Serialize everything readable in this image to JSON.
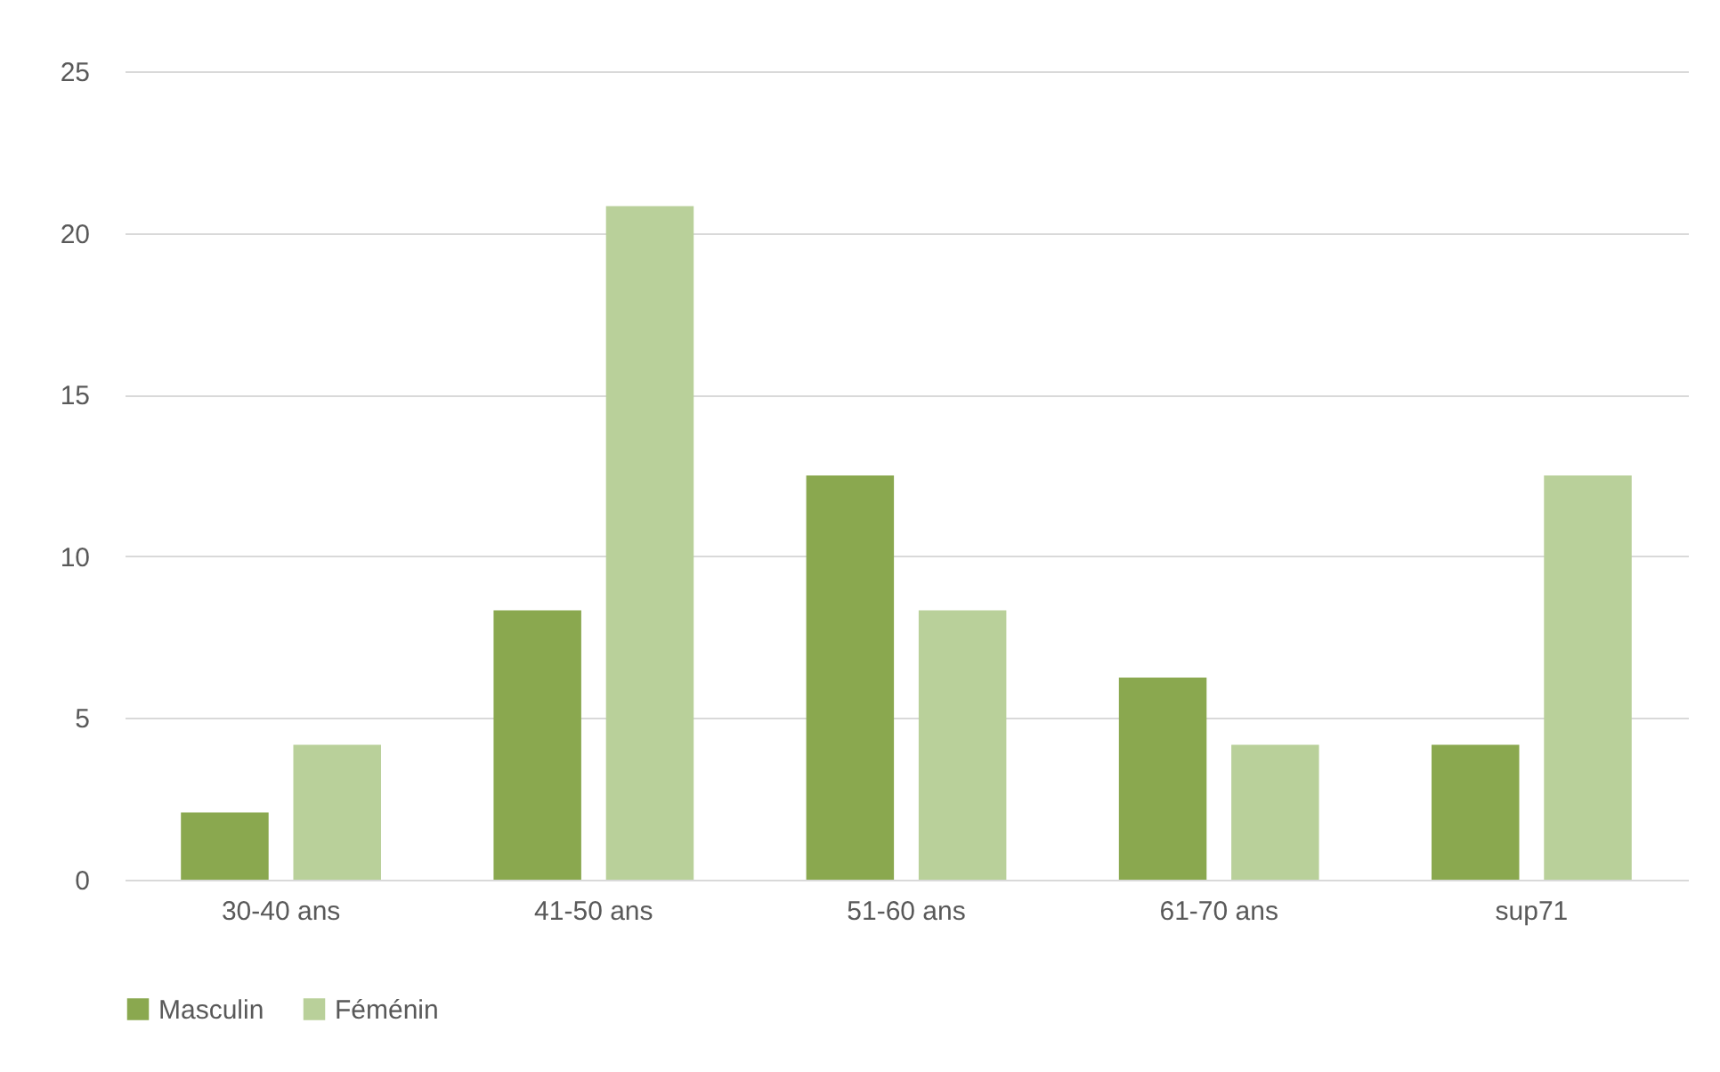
{
  "chart_data": {
    "type": "bar",
    "categories": [
      "30-40 ans",
      "41-50 ans",
      "51-60 ans",
      "61-70 ans",
      "sup71"
    ],
    "series": [
      {
        "name": "Masculin",
        "color": "#8aa84f",
        "values": [
          2.08,
          8.33,
          12.5,
          6.25,
          4.17
        ]
      },
      {
        "name": "Féménin",
        "color": "#b9d09a",
        "values": [
          4.17,
          20.83,
          8.33,
          4.17,
          12.5
        ]
      }
    ],
    "ylim": [
      0,
      25
    ],
    "yticks": [
      0,
      5,
      10,
      15,
      20,
      25
    ],
    "grid": "y",
    "legend": "bottom"
  }
}
